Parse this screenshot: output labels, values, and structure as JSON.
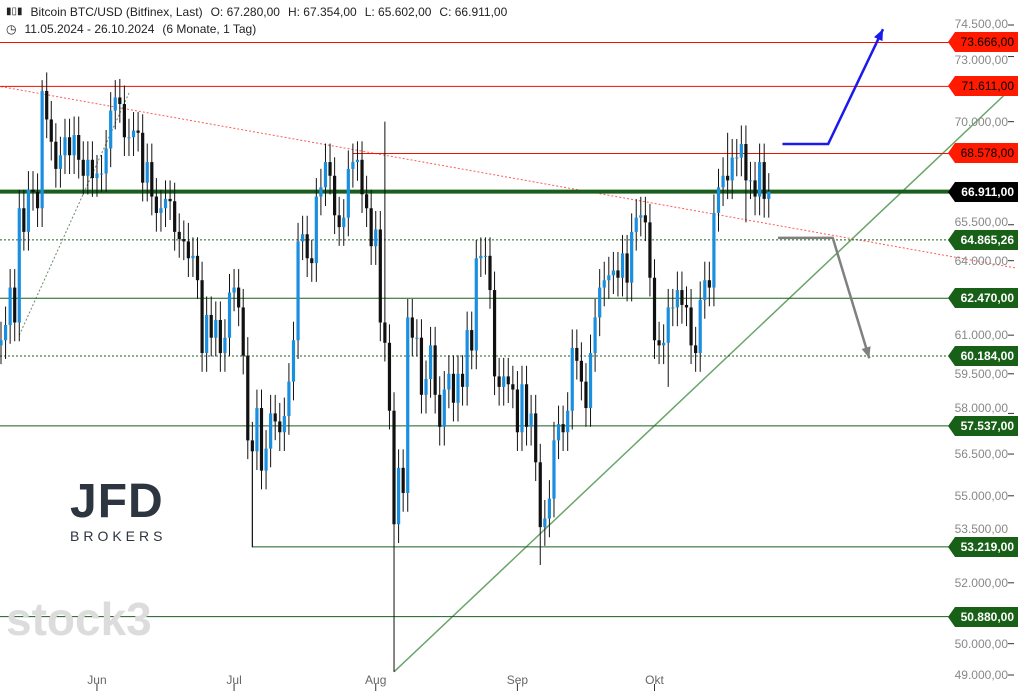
{
  "header": {
    "title": "Bitcoin BTC/USD (Bitfinex, Last)",
    "open": "O: 67.280,00",
    "high": "H: 67.354,00",
    "low": "L: 65.602,00",
    "close": "C: 66.911,00",
    "range": "11.05.2024 - 26.10.2024",
    "period": "(6 Monate, 1 Tag)"
  },
  "logo": {
    "name": "JFD",
    "sub": "BROKERS"
  },
  "watermark": "stock3",
  "colors": {
    "up": "#1a8fe0",
    "down": "#111111",
    "resistance": "#ee1100",
    "support": "#1a5e1e",
    "close": "#000000",
    "trend_up": "#6aa56a",
    "trend_down": "#ff5a5a"
  },
  "chart_data": {
    "type": "candlestick",
    "title": "Bitcoin BTC/USD (Bitfinex, Last)",
    "start_date": "2024-05-11",
    "end_date": "2024-10-26",
    "scale": "log",
    "ylim": [
      49000,
      74500
    ],
    "y_ticks": [
      "74.500,00",
      "73.000,00",
      "70.000,00",
      "65.500,00",
      "64.000,00",
      "61.000,00",
      "59.500,00",
      "58.000,00",
      "56.500,00",
      "55.000,00",
      "53.500,00",
      "52.000,00",
      "50.000,00",
      "49.000,00"
    ],
    "y_tick_values": [
      74500,
      73000,
      70000,
      65500,
      64000,
      61000,
      59500,
      58000,
      56500,
      55000,
      53500,
      52000,
      50000,
      49000
    ],
    "x_ticks": [
      {
        "label": "Jun",
        "day": 21
      },
      {
        "label": "Jul",
        "day": 51
      },
      {
        "label": "Aug",
        "day": 82
      },
      {
        "label": "Sep",
        "day": 113
      },
      {
        "label": "Okt",
        "day": 143
      }
    ],
    "closes": [
      60.8,
      61.4,
      62.9,
      61.5,
      66.2,
      65.2,
      67.0,
      66.9,
      66.2,
      71.4,
      70.1,
      69.1,
      67.9,
      68.5,
      69.3,
      68.5,
      69.4,
      68.3,
      67.6,
      68.3,
      67.5,
      67.7,
      67.7,
      68.8,
      70.5,
      71.1,
      70.8,
      69.3,
      69.3,
      69.6,
      69.5,
      67.3,
      68.2,
      66.7,
      66.0,
      66.2,
      66.6,
      66.5,
      65.2,
      64.9,
      64.8,
      64.1,
      64.2,
      63.2,
      60.3,
      61.8,
      60.9,
      61.6,
      60.3,
      60.9,
      62.7,
      62.9,
      62.1,
      60.2,
      57.0,
      56.6,
      58.2,
      55.9,
      56.7,
      58.0,
      57.7,
      57.3,
      57.9,
      59.2,
      60.8,
      64.8,
      65.1,
      64.1,
      63.9,
      66.7,
      67.1,
      68.2,
      67.6,
      65.9,
      65.4,
      65.8,
      67.9,
      68.2,
      68.3,
      66.8,
      66.2,
      64.6,
      65.3,
      61.5,
      60.7,
      58.1,
      54.0,
      56.0,
      55.1,
      61.7,
      60.9,
      60.9,
      58.7,
      59.3,
      60.6,
      58.7,
      57.5,
      58.9,
      59.5,
      58.4,
      59.5,
      59.0,
      61.2,
      60.4,
      64.1,
      64.2,
      64.2,
      62.8,
      59.4,
      59.0,
      59.4,
      59.1,
      58.9,
      57.3,
      59.1,
      57.5,
      58.0,
      56.2,
      53.9,
      54.2,
      54.9,
      57.0,
      57.6,
      57.3,
      58.1,
      60.5,
      60.0,
      59.2,
      58.2,
      60.3,
      61.7,
      62.9,
      63.2,
      63.4,
      63.6,
      63.3,
      64.3,
      63.1,
      65.2,
      65.8,
      65.9,
      65.6,
      63.3,
      60.8,
      60.6,
      60.7,
      62.1,
      62.1,
      62.8,
      62.2,
      62.1,
      60.6,
      60.3,
      62.4,
      63.2,
      62.9,
      66.0,
      67.1,
      67.6,
      67.4,
      68.4,
      68.4,
      69.0,
      67.4,
      67.4,
      66.7,
      68.2,
      66.6,
      66.911
    ],
    "first_open": 60.6,
    "unit": "thousand USD",
    "wick_extremes": [
      {
        "day": 9,
        "high": 71.9
      },
      {
        "day": 25,
        "high": 71.9
      },
      {
        "day": 55,
        "low": 53.2
      },
      {
        "day": 86,
        "low": 49.1
      },
      {
        "day": 84,
        "high": 70.0
      },
      {
        "day": 118,
        "low": 52.6
      },
      {
        "day": 159,
        "high": 69.5
      },
      {
        "day": 146,
        "low": 59.0
      },
      {
        "day": 163,
        "low": 65.6
      }
    ],
    "levels": [
      {
        "value": 73666,
        "label": "73.666,00",
        "kind": "resistance"
      },
      {
        "value": 71611,
        "label": "71.611,00",
        "kind": "resistance"
      },
      {
        "value": 68578,
        "label": "68.578,00",
        "kind": "resistance",
        "from_day": 77
      },
      {
        "value": 66911,
        "label": "66.911,00",
        "kind": "close"
      },
      {
        "value": 64865.26,
        "label": "64.865,26",
        "kind": "support",
        "dotted": true
      },
      {
        "value": 62470,
        "label": "62.470,00",
        "kind": "support"
      },
      {
        "value": 60184,
        "label": "60.184,00",
        "kind": "support",
        "dotted": true
      },
      {
        "value": 57537,
        "label": "57.537,00",
        "kind": "support"
      },
      {
        "value": 53219,
        "label": "53.219,00",
        "kind": "support",
        "from_day": 55
      },
      {
        "value": 50880,
        "label": "50.880,00",
        "kind": "support"
      }
    ],
    "trendlines": [
      {
        "kind": "down",
        "from": {
          "day": 0,
          "price": 71600
        },
        "to": {
          "day": 222,
          "price": 63700
        },
        "dotted": true
      },
      {
        "kind": "up",
        "from": {
          "day": 86,
          "price": 49100
        },
        "to": {
          "day": 221,
          "price": 71500
        }
      },
      {
        "kind": "up-minor",
        "from": {
          "day": 4,
          "price": 61000
        },
        "to": {
          "day": 28,
          "price": 71300
        },
        "dotted": true
      }
    ],
    "scenarios": [
      {
        "kind": "bullish",
        "points": [
          {
            "day": 171,
            "price": 69000
          },
          {
            "day": 181,
            "price": 69000
          },
          {
            "day": 193,
            "price": 74300
          }
        ]
      },
      {
        "kind": "bearish",
        "points": [
          {
            "day": 170,
            "price": 64950
          },
          {
            "day": 182,
            "price": 64950
          },
          {
            "day": 190,
            "price": 60100
          }
        ]
      }
    ]
  }
}
